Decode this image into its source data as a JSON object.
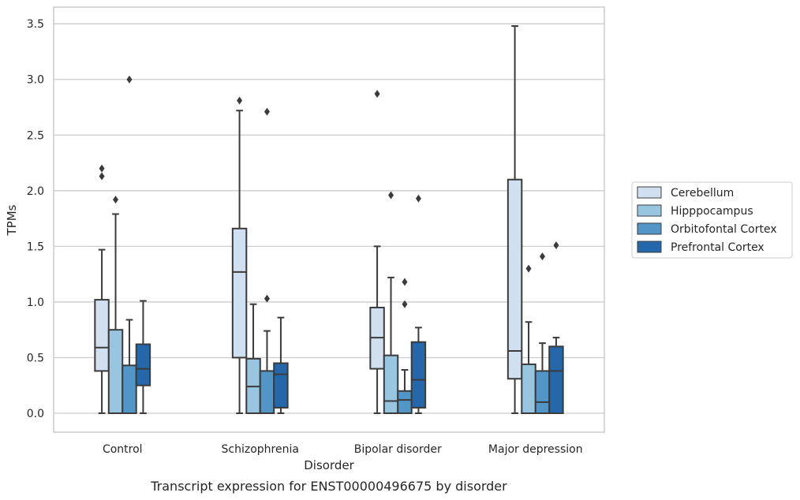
{
  "chart_data": {
    "type": "box",
    "caption": "Transcript expression for ENST00000496675 by disorder",
    "xlabel": "Disorder",
    "ylabel": "TPMs",
    "ylim": [
      -0.17,
      3.65
    ],
    "yticks": [
      0.0,
      0.5,
      1.0,
      1.5,
      2.0,
      2.5,
      3.0,
      3.5
    ],
    "ytick_labels": [
      "0.0",
      "0.5",
      "1.0",
      "1.5",
      "2.0",
      "2.5",
      "3.0",
      "3.5"
    ],
    "grid": "horizontal",
    "legend_position": "outside-right",
    "categories": [
      "Control",
      "Schizophrenia",
      "Bipolar disorder",
      "Major depression"
    ],
    "series": [
      {
        "name": "Cerebellum",
        "color": "#d0e0f1",
        "boxes": [
          {
            "whisker_low": 0.0,
            "q1": 0.38,
            "median": 0.59,
            "q3": 1.02,
            "whisker_high": 1.47,
            "outliers": [
              2.13,
              2.2
            ]
          },
          {
            "whisker_low": 0.0,
            "q1": 0.5,
            "median": 1.27,
            "q3": 1.66,
            "whisker_high": 2.72,
            "outliers": [
              2.81
            ]
          },
          {
            "whisker_low": 0.0,
            "q1": 0.4,
            "median": 0.68,
            "q3": 0.95,
            "whisker_high": 1.5,
            "outliers": [
              2.87
            ]
          },
          {
            "whisker_low": 0.0,
            "q1": 0.31,
            "median": 0.56,
            "q3": 2.1,
            "whisker_high": 3.48,
            "outliers": []
          }
        ]
      },
      {
        "name": "Hipppocampus",
        "color": "#98c5e0",
        "boxes": [
          {
            "whisker_low": 0.0,
            "q1": 0.0,
            "median": 0.0,
            "q3": 0.75,
            "whisker_high": 1.79,
            "outliers": [
              1.92
            ]
          },
          {
            "whisker_low": 0.0,
            "q1": 0.0,
            "median": 0.24,
            "q3": 0.49,
            "whisker_high": 0.98,
            "outliers": []
          },
          {
            "whisker_low": 0.0,
            "q1": 0.0,
            "median": 0.11,
            "q3": 0.52,
            "whisker_high": 1.22,
            "outliers": [
              1.96
            ]
          },
          {
            "whisker_low": 0.0,
            "q1": 0.0,
            "median": 0.0,
            "q3": 0.44,
            "whisker_high": 0.82,
            "outliers": [
              1.3
            ]
          }
        ]
      },
      {
        "name": "Orbitofontal Cortex",
        "color": "#5196c6",
        "boxes": [
          {
            "whisker_low": 0.0,
            "q1": 0.0,
            "median": 0.0,
            "q3": 0.43,
            "whisker_high": 0.84,
            "outliers": [
              3.0
            ]
          },
          {
            "whisker_low": 0.0,
            "q1": 0.0,
            "median": 0.0,
            "q3": 0.38,
            "whisker_high": 0.74,
            "outliers": [
              1.03,
              2.71
            ]
          },
          {
            "whisker_low": 0.0,
            "q1": 0.0,
            "median": 0.12,
            "q3": 0.2,
            "whisker_high": 0.39,
            "outliers": [
              0.98,
              1.18
            ]
          },
          {
            "whisker_low": 0.0,
            "q1": 0.0,
            "median": 0.1,
            "q3": 0.38,
            "whisker_high": 0.63,
            "outliers": [
              1.41
            ]
          }
        ]
      },
      {
        "name": "Prefrontal Cortex",
        "color": "#2468ab",
        "boxes": [
          {
            "whisker_low": 0.0,
            "q1": 0.25,
            "median": 0.4,
            "q3": 0.62,
            "whisker_high": 1.01,
            "outliers": []
          },
          {
            "whisker_low": 0.0,
            "q1": 0.05,
            "median": 0.35,
            "q3": 0.45,
            "whisker_high": 0.86,
            "outliers": []
          },
          {
            "whisker_low": 0.0,
            "q1": 0.05,
            "median": 0.3,
            "q3": 0.64,
            "whisker_high": 0.77,
            "outliers": [
              1.93
            ]
          },
          {
            "whisker_low": 0.0,
            "q1": 0.0,
            "median": 0.38,
            "q3": 0.6,
            "whisker_high": 0.68,
            "outliers": [
              1.51
            ]
          }
        ]
      }
    ]
  }
}
